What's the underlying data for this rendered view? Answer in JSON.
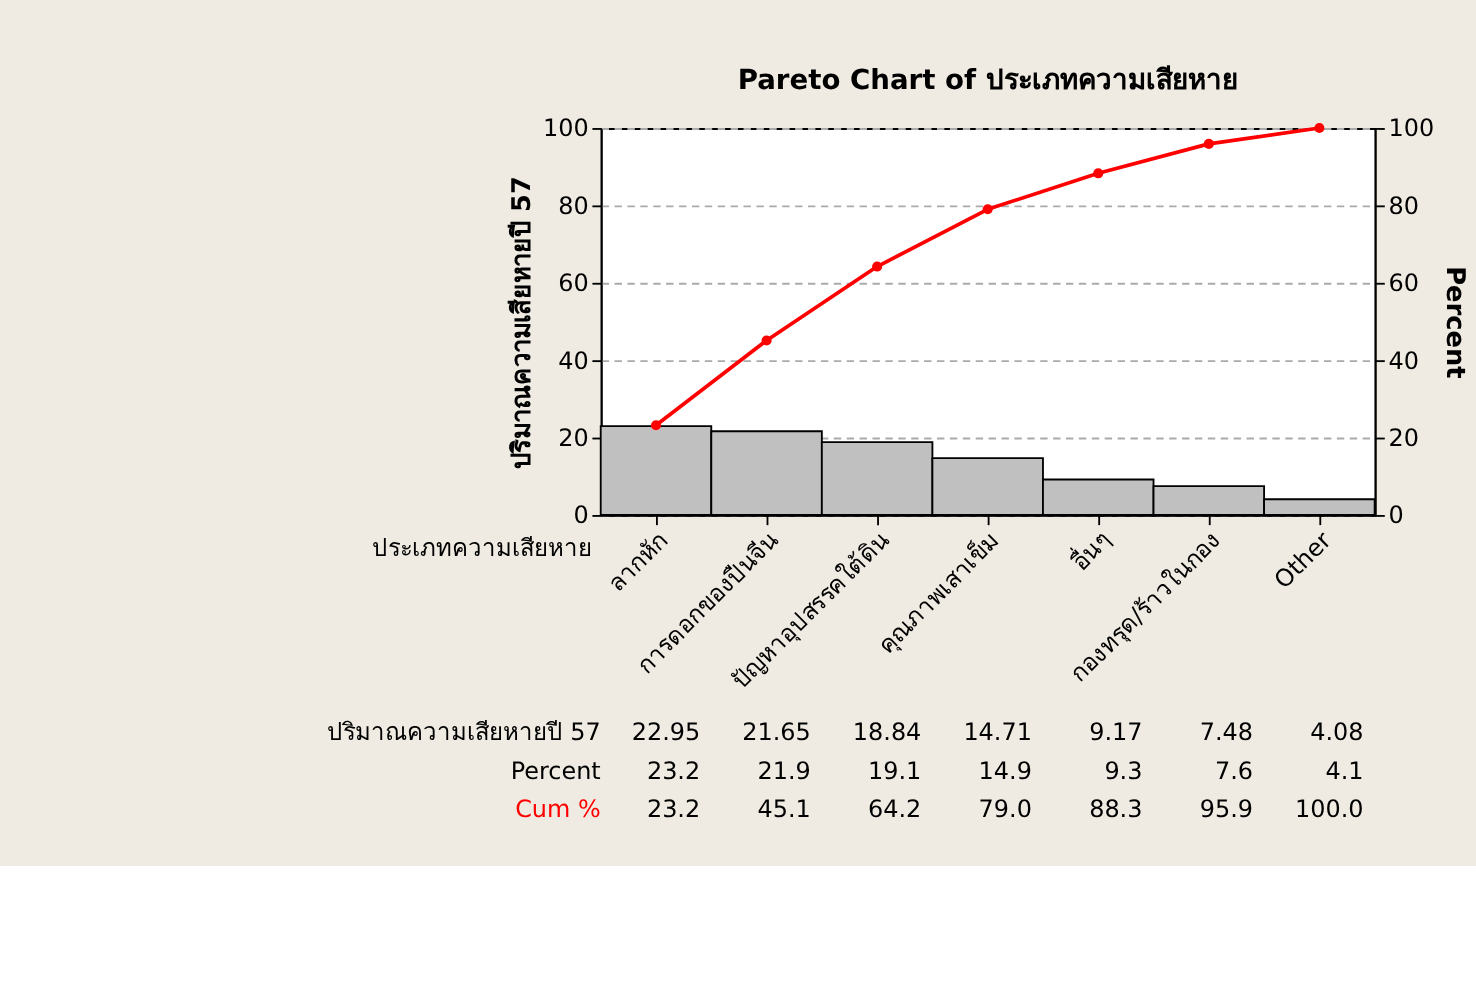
{
  "chart_data": {
    "type": "bar",
    "title": "Pareto Chart of ประเภทความเสียหาย",
    "xlabel": "ประเภทความเสียหาย",
    "ylabel": "ปริมาณความเสียหายปี 57",
    "y2label": "Percent",
    "categories": [
      "ลากหัก",
      "การดอกของปืนจีน",
      "ปัญหาอุปสรรคใต้ดิน",
      "คุณภาพเสาเข็ม",
      "อื่นๆ",
      "กองทรุด/ร้าวในกอง",
      "Other"
    ],
    "series": [
      {
        "name": "ปริมาณความเสียหายปี 57",
        "type": "bar",
        "color": "#c0c0c0",
        "values": [
          22.95,
          21.65,
          18.84,
          14.71,
          9.17,
          7.48,
          4.08
        ],
        "value_labels": [
          "22.95",
          "21.65",
          "18.84",
          "14.71",
          "9.17",
          "7.48",
          "4.08"
        ]
      },
      {
        "name": "Cum %",
        "type": "line",
        "axis": "y2",
        "color": "#ff0000",
        "marker": "circle",
        "values": [
          23.2,
          45.1,
          64.2,
          79.0,
          88.3,
          95.9,
          100.0
        ],
        "value_labels": [
          "23.2",
          "45.1",
          "64.2",
          "79.0",
          "88.3",
          "95.9",
          "100.0"
        ]
      }
    ],
    "annotations": [
      "Percent",
      "23.2",
      "21.9",
      "19.1",
      "14.9",
      "9.3",
      "7.6",
      "4.1"
    ],
    "ylim": [
      0,
      100
    ],
    "yticks": [
      0,
      20,
      40,
      60,
      80,
      100
    ],
    "y2lim": [
      0,
      100
    ],
    "y2ticks": [
      0,
      20,
      40,
      60,
      80,
      100
    ],
    "grid": "y",
    "legend": false
  }
}
